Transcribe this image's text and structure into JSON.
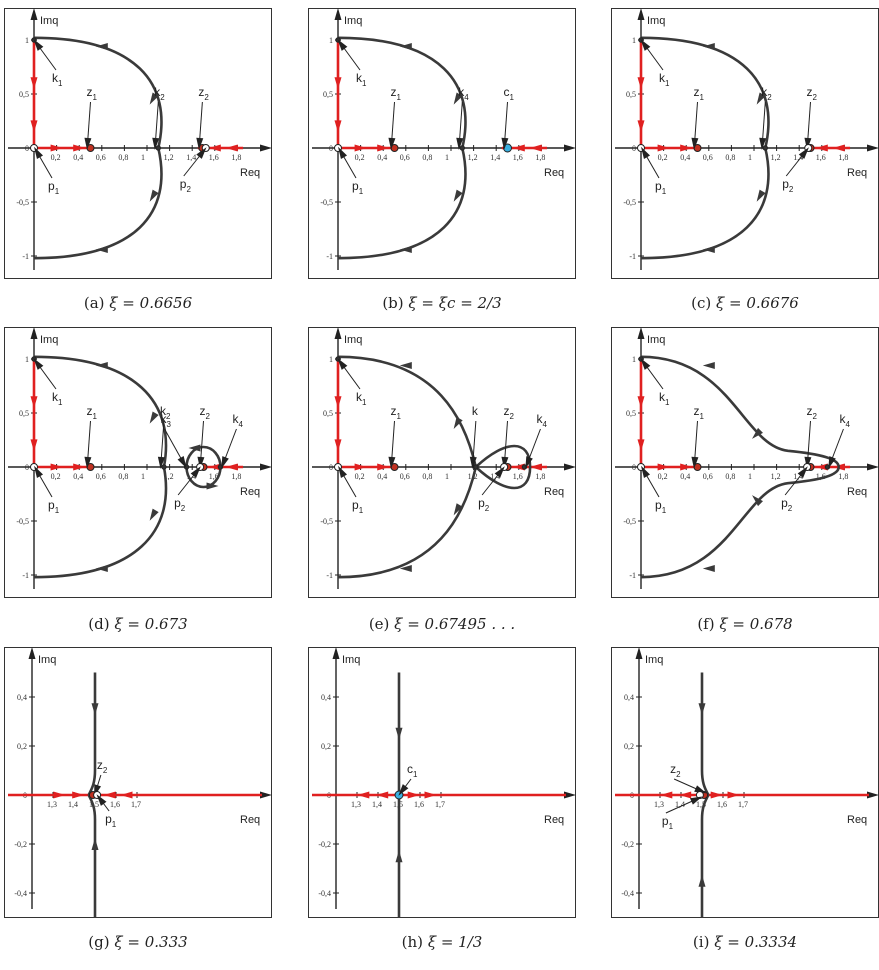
{
  "axes": {
    "re_label": "Req",
    "im_label": "Imq"
  },
  "colors": {
    "curve": "#3a3a3a",
    "real_axis_path": "#e02020",
    "zero_fill": "#c03020",
    "crit_fill": "#3ab0e0",
    "crit_fill_b": "#7a8fd0"
  },
  "panels": [
    {
      "id": "a",
      "caption_label": "(a)",
      "caption_expr": "ξ = 0.6656",
      "xticks": [
        "0,2",
        "0,4",
        "0,6",
        "0,8",
        "1",
        "1,2",
        "1,4",
        "1,6",
        "1,8"
      ],
      "yticks": [
        "1",
        "0,5",
        "0",
        "-0,5",
        "-1"
      ],
      "points": [
        {
          "name": "p",
          "sub": "1",
          "re": 0,
          "im": 0,
          "kind": "pole"
        },
        {
          "name": "z",
          "sub": "1",
          "re": 0.5,
          "im": 0,
          "kind": "zero"
        },
        {
          "name": "k",
          "sub": "1",
          "re": 0,
          "im": 1,
          "kind": "crit"
        },
        {
          "name": "k",
          "sub": "2",
          "re": 1.1,
          "im": 0,
          "kind": "crit"
        },
        {
          "name": "z",
          "sub": "2",
          "re": 1.49,
          "im": 0,
          "kind": "zero"
        },
        {
          "name": "p",
          "sub": "2",
          "re": 1.52,
          "im": 0,
          "kind": "pole"
        }
      ]
    },
    {
      "id": "b",
      "caption_label": "(b)",
      "caption_expr": "ξ = ξc = 2/3",
      "xticks": [
        "0,2",
        "0,4",
        "0,6",
        "0,8",
        "1",
        "1,2",
        "1,4",
        "1,6",
        "1,8"
      ],
      "yticks": [
        "1",
        "0,5",
        "0",
        "-0,5",
        "-1"
      ],
      "points": [
        {
          "name": "p",
          "sub": "1",
          "re": 0,
          "im": 0,
          "kind": "pole"
        },
        {
          "name": "z",
          "sub": "1",
          "re": 0.5,
          "im": 0,
          "kind": "zero"
        },
        {
          "name": "k",
          "sub": "1",
          "re": 0,
          "im": 1,
          "kind": "crit"
        },
        {
          "name": "k",
          "sub": "4",
          "re": 1.1,
          "im": 0,
          "kind": "crit"
        },
        {
          "name": "c",
          "sub": "1",
          "re": 1.5,
          "im": 0,
          "kind": "cancel"
        }
      ]
    },
    {
      "id": "c",
      "caption_label": "(c)",
      "caption_expr": "ξ = 0.6676",
      "xticks": [
        "0,2",
        "0,4",
        "0,6",
        "0,8",
        "1",
        "1,2",
        "1,4",
        "1,6",
        "1,8"
      ],
      "yticks": [
        "1",
        "0,5",
        "0",
        "-0,5",
        "-1"
      ],
      "points": [
        {
          "name": "p",
          "sub": "1",
          "re": 0,
          "im": 0,
          "kind": "pole"
        },
        {
          "name": "z",
          "sub": "1",
          "re": 0.5,
          "im": 0,
          "kind": "zero"
        },
        {
          "name": "k",
          "sub": "1",
          "re": 0,
          "im": 1,
          "kind": "crit"
        },
        {
          "name": "k",
          "sub": "2",
          "re": 1.1,
          "im": 0,
          "kind": "crit"
        },
        {
          "name": "z",
          "sub": "2",
          "re": 1.5,
          "im": 0,
          "kind": "zero"
        },
        {
          "name": "p",
          "sub": "2",
          "re": 1.48,
          "im": 0,
          "kind": "pole"
        }
      ]
    },
    {
      "id": "d",
      "caption_label": "(d)",
      "caption_expr": "ξ = 0.673",
      "xticks": [
        "0,2",
        "0,4",
        "0,6",
        "0,8",
        "1",
        "1,2",
        "1,4",
        "1,6",
        "1,8"
      ],
      "yticks": [
        "1",
        "0,5",
        "0",
        "-0,5",
        "-1"
      ],
      "points": [
        {
          "name": "p",
          "sub": "1",
          "re": 0,
          "im": 0,
          "kind": "pole"
        },
        {
          "name": "z",
          "sub": "1",
          "re": 0.5,
          "im": 0,
          "kind": "zero"
        },
        {
          "name": "k",
          "sub": "1",
          "re": 0,
          "im": 1,
          "kind": "crit"
        },
        {
          "name": "k",
          "sub": "2",
          "re": 1.15,
          "im": 0,
          "kind": "crit"
        },
        {
          "name": "k",
          "sub": "3",
          "re": 1.35,
          "im": 0,
          "kind": "crit"
        },
        {
          "name": "z",
          "sub": "2",
          "re": 1.5,
          "im": 0,
          "kind": "zero"
        },
        {
          "name": "p",
          "sub": "2",
          "re": 1.47,
          "im": 0,
          "kind": "pole"
        },
        {
          "name": "k",
          "sub": "4",
          "re": 1.65,
          "im": 0,
          "kind": "crit"
        }
      ]
    },
    {
      "id": "e",
      "caption_label": "(e)",
      "caption_expr": "ξ = 0.67495 . . .",
      "xticks": [
        "0,2",
        "0,4",
        "0,6",
        "0,8",
        "1",
        "1,2",
        "1,4",
        "1,6",
        "1,8"
      ],
      "yticks": [
        "1",
        "0,5",
        "0",
        "-0,5",
        "-1"
      ],
      "points": [
        {
          "name": "p",
          "sub": "1",
          "re": 0,
          "im": 0,
          "kind": "pole"
        },
        {
          "name": "z",
          "sub": "1",
          "re": 0.5,
          "im": 0,
          "kind": "zero"
        },
        {
          "name": "k",
          "sub": "1",
          "re": 0,
          "im": 1,
          "kind": "crit"
        },
        {
          "name": "k",
          "sub": "",
          "re": 1.22,
          "im": 0,
          "kind": "crit"
        },
        {
          "name": "z",
          "sub": "2",
          "re": 1.5,
          "im": 0,
          "kind": "zero"
        },
        {
          "name": "p",
          "sub": "2",
          "re": 1.47,
          "im": 0,
          "kind": "pole"
        },
        {
          "name": "k",
          "sub": "4",
          "re": 1.65,
          "im": 0,
          "kind": "crit"
        }
      ]
    },
    {
      "id": "f",
      "caption_label": "(f)",
      "caption_expr": "ξ = 0.678",
      "xticks": [
        "0,2",
        "0,4",
        "0,6",
        "0,8",
        "1",
        "1,2",
        "1,4",
        "1,6",
        "1,8"
      ],
      "yticks": [
        "1",
        "0,5",
        "0",
        "-0,5",
        "-1"
      ],
      "points": [
        {
          "name": "p",
          "sub": "1",
          "re": 0,
          "im": 0,
          "kind": "pole"
        },
        {
          "name": "z",
          "sub": "1",
          "re": 0.5,
          "im": 0,
          "kind": "zero"
        },
        {
          "name": "k",
          "sub": "1",
          "re": 0,
          "im": 1,
          "kind": "crit"
        },
        {
          "name": "z",
          "sub": "2",
          "re": 1.5,
          "im": 0,
          "kind": "zero"
        },
        {
          "name": "p",
          "sub": "2",
          "re": 1.47,
          "im": 0,
          "kind": "pole"
        },
        {
          "name": "k",
          "sub": "4",
          "re": 1.65,
          "im": 0,
          "kind": "crit"
        }
      ]
    },
    {
      "id": "g",
      "caption_label": "(g)",
      "caption_expr": "ξ = 0.333",
      "xticks": [
        "1,3",
        "1,4",
        "1,5",
        "1,6",
        "1,7"
      ],
      "yticks": [
        "0,4",
        "0,2",
        "0",
        "-0,2",
        "-0,4"
      ],
      "points": [
        {
          "name": "z",
          "sub": "2",
          "re": 1.49,
          "im": 0,
          "kind": "zero"
        },
        {
          "name": "p",
          "sub": "1",
          "re": 1.51,
          "im": 0,
          "kind": "pole"
        }
      ]
    },
    {
      "id": "h",
      "caption_label": "(h)",
      "caption_expr": "ξ = 1/3",
      "xticks": [
        "1,3",
        "1,4",
        "1,5",
        "1,6",
        "1,7"
      ],
      "yticks": [
        "0,4",
        "0,2",
        "0",
        "-0,2",
        "-0,4"
      ],
      "points": [
        {
          "name": "c",
          "sub": "1",
          "re": 1.5,
          "im": 0,
          "kind": "cancel"
        }
      ]
    },
    {
      "id": "i",
      "caption_label": "(i)",
      "caption_expr": "ξ = 0.3334",
      "xticks": [
        "1,3",
        "1,4",
        "1,5",
        "1,6",
        "1,7"
      ],
      "yticks": [
        "0,4",
        "0,2",
        "0",
        "-0,2",
        "-0,4"
      ],
      "points": [
        {
          "name": "z",
          "sub": "2",
          "re": 1.51,
          "im": 0,
          "kind": "zero"
        },
        {
          "name": "p",
          "sub": "1",
          "re": 1.49,
          "im": 0,
          "kind": "pole"
        }
      ]
    }
  ]
}
